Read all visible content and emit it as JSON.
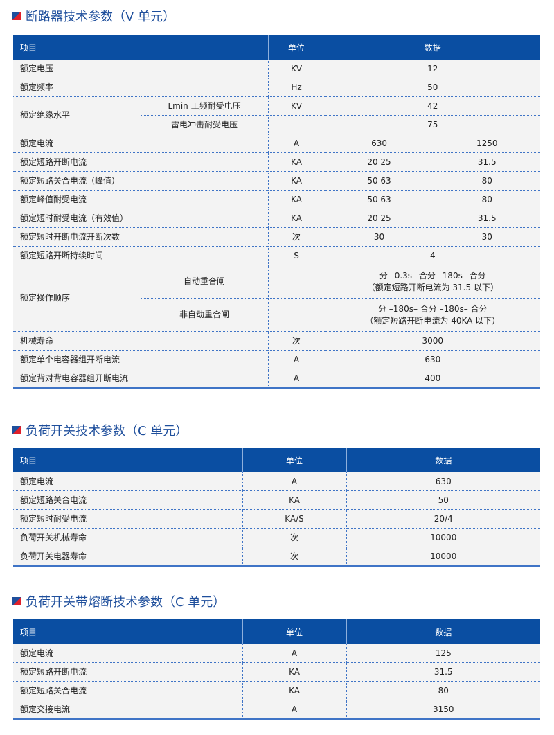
{
  "sections": [
    {
      "title": "断路器技术参数（V 单元）",
      "headers": {
        "item": "项目",
        "unit": "单位",
        "data": "数据"
      },
      "rows": [
        {
          "item": "额定电压",
          "unit": "KV",
          "values": [
            "12"
          ]
        },
        {
          "item": "额定频率",
          "unit": "Hz",
          "values": [
            "50"
          ]
        },
        {
          "item": "额定绝缘水平",
          "item_rows": 2,
          "sub": "Lmin 工频耐受电压",
          "unit": "KV",
          "values": [
            "42"
          ]
        },
        {
          "sub": "雷电冲击耐受电压",
          "unit": "",
          "values": [
            "75"
          ]
        },
        {
          "item": "额定电流",
          "unit": "A",
          "values": [
            "630",
            "1250"
          ]
        },
        {
          "item": "额定短路开断电流",
          "unit": "KA",
          "values": [
            "20   25",
            "31.5"
          ]
        },
        {
          "item": "额定短路关合电流（峰值）",
          "unit": "KA",
          "values": [
            "50   63",
            "80"
          ]
        },
        {
          "item": "额定峰值耐受电流",
          "unit": "KA",
          "values": [
            "50   63",
            "80"
          ]
        },
        {
          "item": "额定短时耐受电流（有效值）",
          "unit": "KA",
          "values": [
            "20   25",
            "31.5"
          ]
        },
        {
          "item": "额定短时开断电流开断次数",
          "unit": "次",
          "values": [
            "30",
            "30"
          ]
        },
        {
          "item": "额定短路开断持续时间",
          "unit": "S",
          "values": [
            "4"
          ]
        },
        {
          "item": "额定操作顺序",
          "item_rows": 2,
          "sub": "自动重合闸",
          "unit": "",
          "values": [
            "分 –0.3s– 合分 –180s– 合分\n（额定短路开断电流为 31.5 以下）"
          ]
        },
        {
          "sub": "非自动重合闸",
          "unit": "",
          "values": [
            "分 –180s– 合分 –180s– 合分\n（额定短路开断电流为 40KA 以下）"
          ]
        },
        {
          "item": "机械寿命",
          "unit": "次",
          "values": [
            "3000"
          ]
        },
        {
          "item": "额定单个电容器组开断电流",
          "unit": "A",
          "values": [
            "630"
          ]
        },
        {
          "item": "额定背对背电容器组开断电流",
          "unit": "A",
          "values": [
            "400"
          ]
        }
      ]
    },
    {
      "title": "负荷开关技术参数（C 单元）",
      "headers": {
        "item": "项目",
        "unit": "单位",
        "data": "数据"
      },
      "rows": [
        {
          "item": "额定电流",
          "unit": "A",
          "values": [
            "630"
          ]
        },
        {
          "item": "额定短路关合电流",
          "unit": "KA",
          "values": [
            "50"
          ]
        },
        {
          "item": "额定短时耐受电流",
          "unit": "KA/S",
          "values": [
            "20/4"
          ]
        },
        {
          "item": "负荷开关机械寿命",
          "unit": "次",
          "values": [
            "10000"
          ]
        },
        {
          "item": "负荷开关电器寿命",
          "unit": "次",
          "values": [
            "10000"
          ]
        }
      ]
    },
    {
      "title": "负荷开关带熔断技术参数（C 单元）",
      "headers": {
        "item": "项目",
        "unit": "单位",
        "data": "数据"
      },
      "rows": [
        {
          "item": "额定电流",
          "unit": "A",
          "values": [
            "125"
          ]
        },
        {
          "item": "额定短路开断电流",
          "unit": "KA",
          "values": [
            "31.5"
          ]
        },
        {
          "item": "额定短路关合电流",
          "unit": "KA",
          "values": [
            "80"
          ]
        },
        {
          "item": "额定交接电流",
          "unit": "A",
          "values": [
            "3150"
          ]
        }
      ]
    }
  ],
  "colors": {
    "header": "#0a4ea2",
    "title": "#1f4f9c",
    "accent_red": "#e0202a",
    "row_bg": "#f3f3f3"
  }
}
